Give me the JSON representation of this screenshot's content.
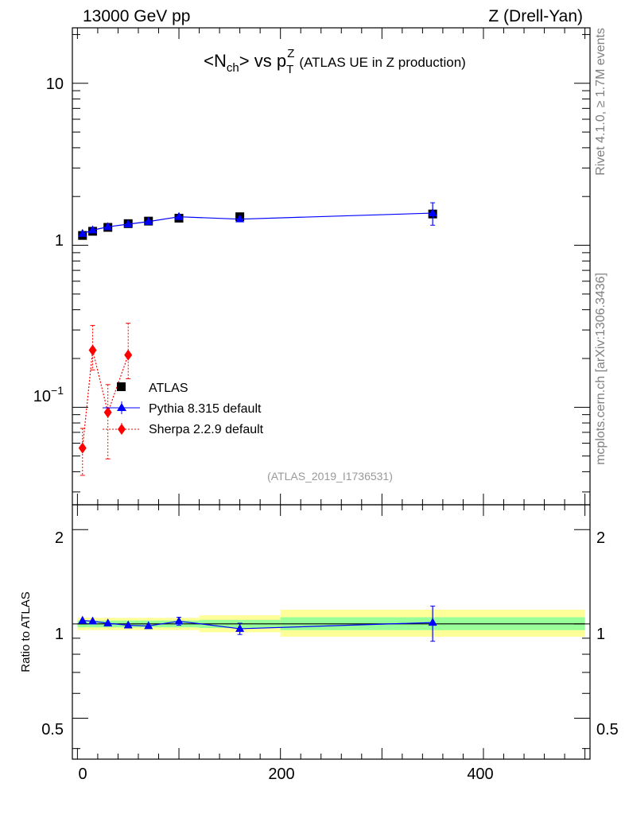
{
  "header": {
    "left": "13000 GeV pp",
    "right": "Z (Drell-Yan)"
  },
  "side_labels": {
    "rivet": "Rivet 4.1.0, ≥ 1.7M events",
    "mcplots": "mcplots.cern.ch [arXiv:1306.3436]"
  },
  "colors": {
    "atlas": "#000000",
    "pythia": "#0000ff",
    "sherpa": "#ff0000",
    "band_inner": "#99ff99",
    "band_outer": "#ffff99",
    "watermark": "#999999"
  },
  "chart_data": [
    {
      "type": "scatter",
      "scale": "log",
      "title": {
        "main": "<N",
        "main_sub": "ch",
        "main_end": "> vs p",
        "var_sup": "Z",
        "var_sub": "T",
        "suffix": "(ATLAS UE in Z production)"
      },
      "xlim": [
        -5,
        505
      ],
      "ylim": [
        0.025,
        22
      ],
      "y_tick_labels": {
        "ten": "10",
        "one": "1",
        "tenth_base": "10",
        "tenth_exp": "−1"
      },
      "watermark": "(ATLAS_2019_I1736531)",
      "legend": {
        "placement": "center-left",
        "entries": [
          "ATLAS",
          "Pythia 8.315 default",
          "Sherpa 2.2.9 default"
        ]
      },
      "series": [
        {
          "name": "ATLAS",
          "marker": "square",
          "x": [
            5,
            15,
            30,
            50,
            70,
            100,
            160,
            350
          ],
          "y": [
            1.15,
            1.22,
            1.29,
            1.36,
            1.41,
            1.47,
            1.5,
            1.56
          ]
        },
        {
          "name": "Pythia 8.315 default",
          "marker": "triangle",
          "x": [
            5,
            15,
            30,
            50,
            70,
            100,
            160,
            350
          ],
          "y": [
            1.18,
            1.24,
            1.3,
            1.35,
            1.4,
            1.5,
            1.45,
            1.58
          ],
          "yerr_low": [
            0.02,
            0.02,
            0.02,
            0.02,
            0.02,
            0.03,
            0.05,
            0.25
          ],
          "yerr_high": [
            0.02,
            0.02,
            0.02,
            0.02,
            0.02,
            0.03,
            0.05,
            0.25
          ]
        },
        {
          "name": "Sherpa 2.2.9 default",
          "marker": "diamond",
          "x": [
            5,
            15,
            30,
            50
          ],
          "y": [
            0.056,
            0.225,
            0.093,
            0.21
          ],
          "yerr_low": [
            0.018,
            0.055,
            0.045,
            0.06
          ],
          "yerr_high": [
            0.018,
            0.095,
            0.045,
            0.12
          ]
        }
      ]
    },
    {
      "type": "line",
      "scale": "log",
      "ylabel": "Ratio to ATLAS",
      "xlim": [
        -5,
        505
      ],
      "ylim": [
        0.37,
        2.4
      ],
      "x_ticks": [
        0,
        200,
        400
      ],
      "x_tick_labels": [
        "0",
        "200",
        "400"
      ],
      "y_ticks": [
        0.5,
        1,
        2
      ],
      "y_tick_labels": [
        "0.5",
        "1",
        "2"
      ],
      "band_bins": [
        {
          "x0": 0,
          "x1": 120,
          "inner_lo": 0.975,
          "inner_hi": 1.025,
          "outer_lo": 0.955,
          "outer_hi": 1.045
        },
        {
          "x0": 120,
          "x1": 200,
          "inner_lo": 0.97,
          "inner_hi": 1.03,
          "outer_lo": 0.94,
          "outer_hi": 1.065
        },
        {
          "x0": 200,
          "x1": 500,
          "inner_lo": 0.955,
          "inner_hi": 1.05,
          "outer_lo": 0.91,
          "outer_hi": 1.11
        }
      ],
      "series": [
        {
          "name": "Pythia 8.315 default",
          "x": [
            5,
            15,
            30,
            50,
            70,
            100,
            160,
            350
          ],
          "y": [
            1.025,
            1.02,
            1.005,
            0.99,
            0.985,
            1.02,
            0.965,
            1.01
          ],
          "yerr": [
            0.01,
            0.01,
            0.01,
            0.01,
            0.01,
            0.03,
            0.04,
            0.13
          ]
        }
      ]
    }
  ]
}
